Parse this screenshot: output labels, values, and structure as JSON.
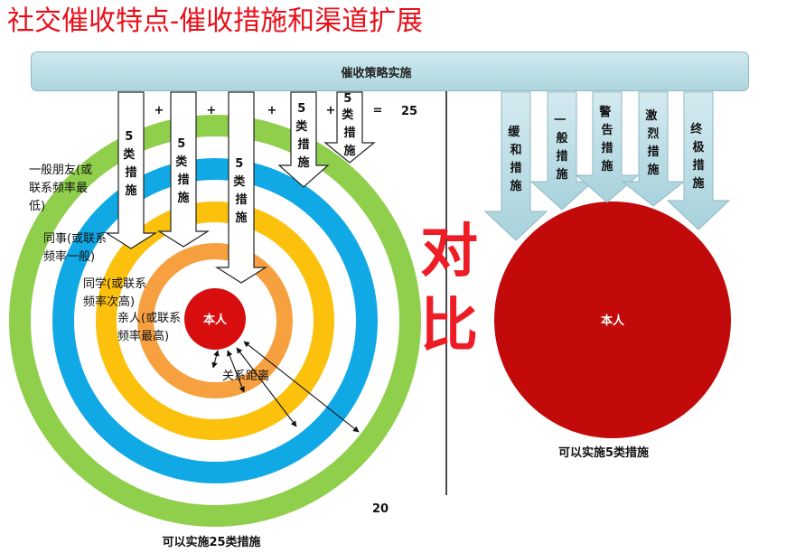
{
  "title": "社交催收特点-催收措施和渠道扩展",
  "strategy_bar": "催收策略实施",
  "left": {
    "measure_count_label": "5类措施",
    "arrow_numbers": [
      "5",
      "5",
      "5",
      "5",
      "5"
    ],
    "arrow_texts": [
      "类措施",
      "类措施",
      "类措施",
      "类措施",
      "类措施"
    ],
    "operators": [
      "+",
      "+",
      "+",
      "+",
      "="
    ],
    "total": "25",
    "rings": [
      {
        "label_lines": [
          "一般朋友(或",
          "联系频率最",
          "低)"
        ],
        "color": "#8fcf4c"
      },
      {
        "label_lines": [
          "同事(或联系",
          "频率一般)"
        ],
        "color": "#10a9e5"
      },
      {
        "label_lines": [
          "同学(或联系",
          "频率次高)"
        ],
        "color": "#fcc10d"
      },
      {
        "label_lines": [
          "亲人(或联系",
          "频率最高)"
        ],
        "color": "#f7a040"
      }
    ],
    "center": "本人",
    "center_color": "#d80d0d",
    "distance_label": "关系距离",
    "caption": "可以实施25类措施"
  },
  "compare": [
    "对",
    "比"
  ],
  "right": {
    "measures": [
      "缓和措施",
      "一般措施",
      "警告措施",
      "激烈措施",
      "终极措施"
    ],
    "center": "本人",
    "center_color": "#c20a0a",
    "caption": "可以实施5类措施"
  },
  "page_number": "20"
}
